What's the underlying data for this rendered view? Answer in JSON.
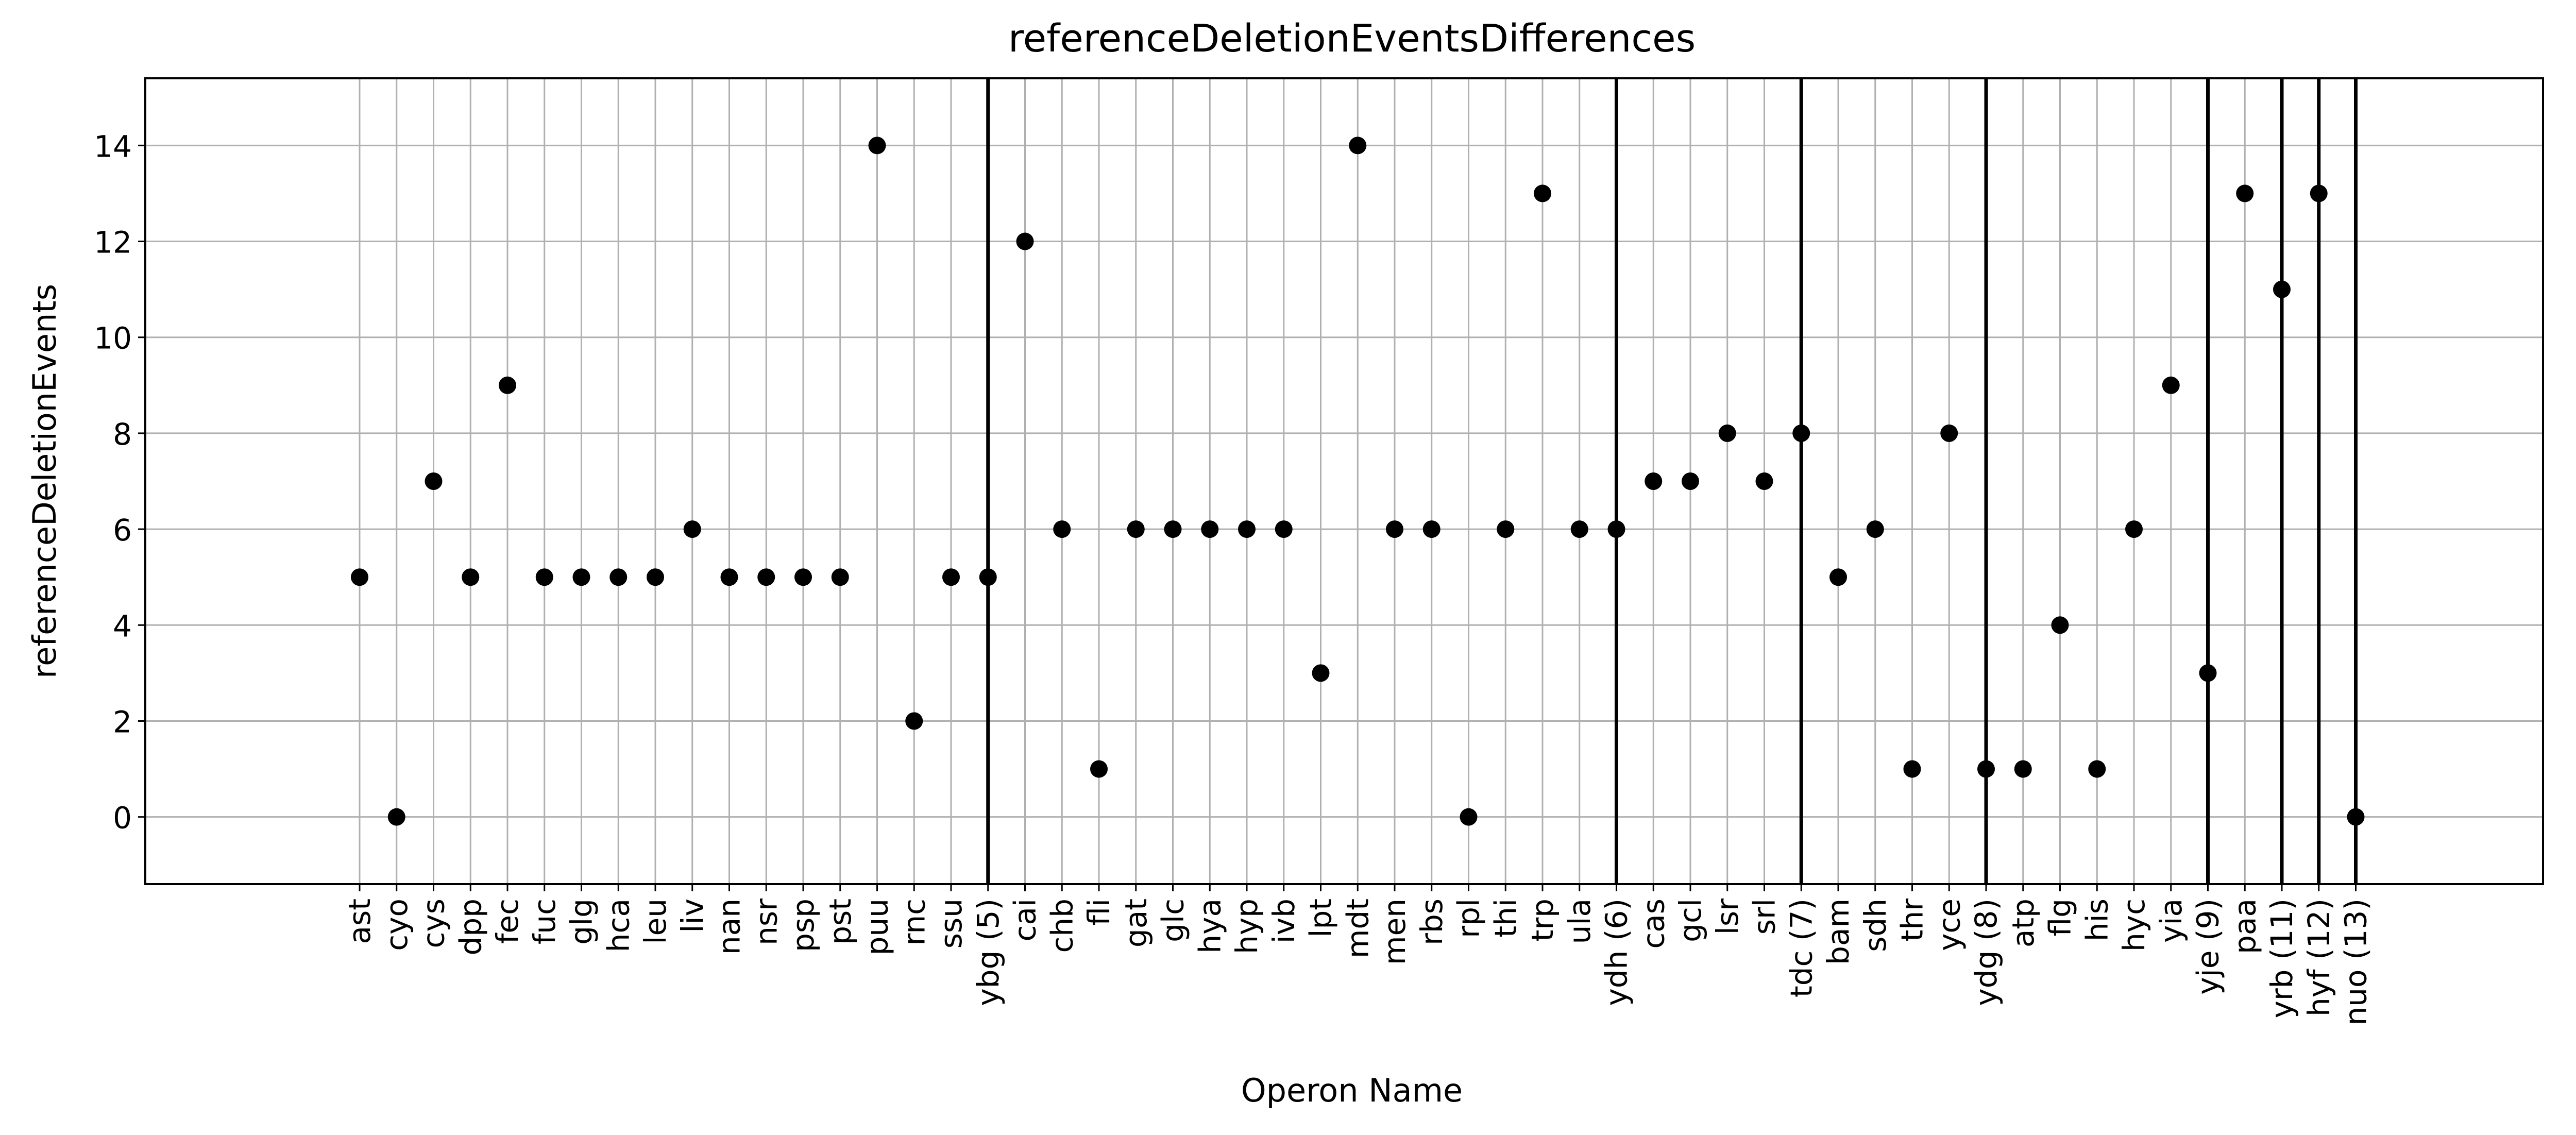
{
  "chart_data": {
    "type": "scatter",
    "title": "referenceDeletionEventsDifferences",
    "xlabel": "Operon Name",
    "ylabel": "referenceDeletionEvents",
    "categories": [
      "ast",
      "cyo",
      "cys",
      "dpp",
      "fec",
      "fuc",
      "glg",
      "hca",
      "leu",
      "liv",
      "nan",
      "nsr",
      "psp",
      "pst",
      "puu",
      "rnc",
      "ssu",
      "ybg (5)",
      "cai",
      "chb",
      "fli",
      "gat",
      "glc",
      "hya",
      "hyp",
      "ivb",
      "lpt",
      "mdt",
      "men",
      "rbs",
      "rpl",
      "thi",
      "trp",
      "ula",
      "ydh (6)",
      "cas",
      "gcl",
      "lsr",
      "srl",
      "tdc (7)",
      "bam",
      "sdh",
      "thr",
      "yce",
      "ydg (8)",
      "atp",
      "flg",
      "his",
      "hyc",
      "yia",
      "yje (9)",
      "paa",
      "yrb (11)",
      "hyf (12)",
      "nuo (13)"
    ],
    "values": [
      5,
      0,
      7,
      5,
      9,
      5,
      5,
      5,
      5,
      6,
      5,
      5,
      5,
      5,
      14,
      2,
      5,
      5,
      12,
      6,
      1,
      6,
      6,
      6,
      6,
      6,
      3,
      14,
      6,
      6,
      0,
      6,
      13,
      6,
      6,
      7,
      7,
      8,
      7,
      8,
      5,
      6,
      1,
      8,
      1,
      1,
      4,
      1,
      6,
      9,
      3,
      13,
      11,
      13,
      0
    ],
    "separators": [
      "ybg (5)",
      "ydh (6)",
      "tdc (7)",
      "ydg (8)",
      "yje (9)",
      "yrb (11)",
      "hyf (12)",
      "nuo (13)"
    ],
    "yticks": [
      0,
      2,
      4,
      6,
      8,
      10,
      12,
      14
    ],
    "ylim": [
      -1.4,
      15.4
    ],
    "grid": true,
    "marker_color": "#000000",
    "grid_color": "#b0b0b0"
  }
}
